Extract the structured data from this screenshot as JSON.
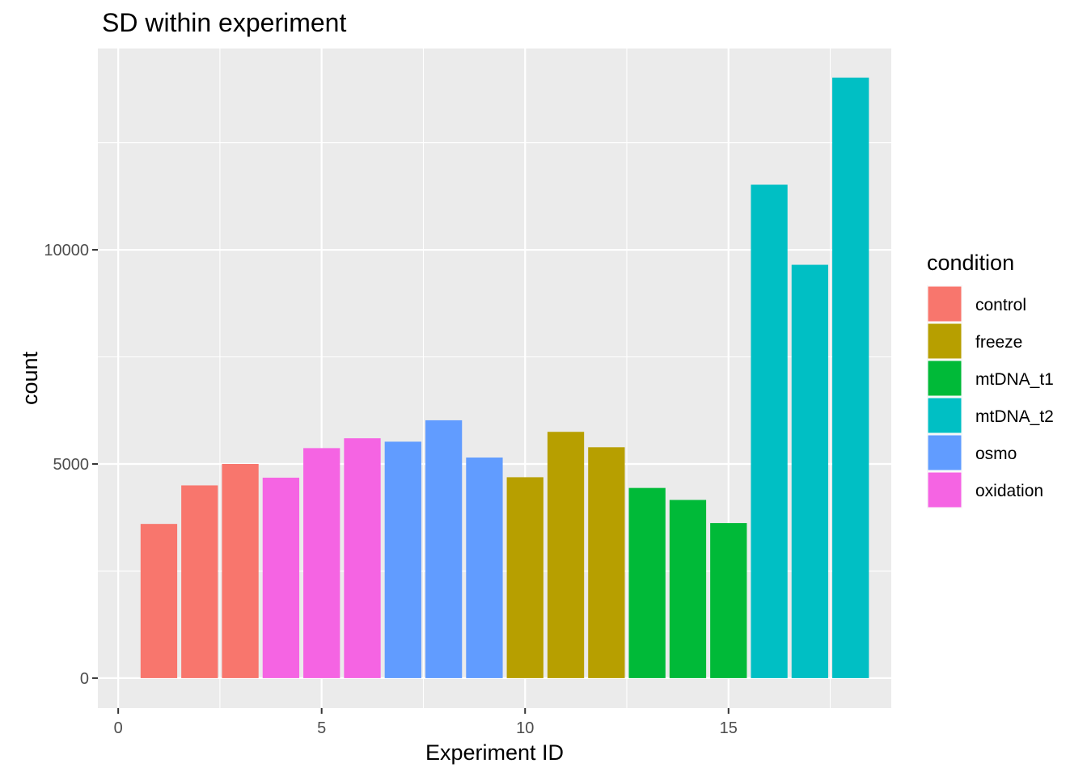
{
  "chart_data": {
    "type": "bar",
    "title": "SD within experiment",
    "xlabel": "Experiment ID",
    "ylabel": "count",
    "xlim": [
      -0.5,
      19
    ],
    "ylim": [
      -700,
      14700
    ],
    "x_ticks": [
      0,
      5,
      10,
      15
    ],
    "y_ticks": [
      0,
      5000,
      10000
    ],
    "grid": true,
    "legend": {
      "title": "condition",
      "position": "right",
      "entries": [
        {
          "name": "control",
          "color": "#F8766D"
        },
        {
          "name": "freeze",
          "color": "#B79F00"
        },
        {
          "name": "mtDNA_t1",
          "color": "#00BA38"
        },
        {
          "name": "mtDNA_t2",
          "color": "#00BFC4"
        },
        {
          "name": "osmo",
          "color": "#619CFF"
        },
        {
          "name": "oxidation",
          "color": "#F564E3"
        }
      ]
    },
    "bars": [
      {
        "x": 1,
        "value": 3600,
        "condition": "control"
      },
      {
        "x": 2,
        "value": 4500,
        "condition": "control"
      },
      {
        "x": 3,
        "value": 5000,
        "condition": "control"
      },
      {
        "x": 4,
        "value": 4680,
        "condition": "oxidation"
      },
      {
        "x": 5,
        "value": 5370,
        "condition": "oxidation"
      },
      {
        "x": 6,
        "value": 5600,
        "condition": "oxidation"
      },
      {
        "x": 7,
        "value": 5520,
        "condition": "osmo"
      },
      {
        "x": 8,
        "value": 6020,
        "condition": "osmo"
      },
      {
        "x": 9,
        "value": 5150,
        "condition": "osmo"
      },
      {
        "x": 10,
        "value": 4690,
        "condition": "freeze"
      },
      {
        "x": 11,
        "value": 5750,
        "condition": "freeze"
      },
      {
        "x": 12,
        "value": 5390,
        "condition": "freeze"
      },
      {
        "x": 13,
        "value": 4440,
        "condition": "mtDNA_t1"
      },
      {
        "x": 14,
        "value": 4160,
        "condition": "mtDNA_t1"
      },
      {
        "x": 15,
        "value": 3620,
        "condition": "mtDNA_t1"
      },
      {
        "x": 16,
        "value": 11520,
        "condition": "mtDNA_t2"
      },
      {
        "x": 17,
        "value": 9650,
        "condition": "mtDNA_t2"
      },
      {
        "x": 18,
        "value": 14020,
        "condition": "mtDNA_t2"
      }
    ]
  }
}
